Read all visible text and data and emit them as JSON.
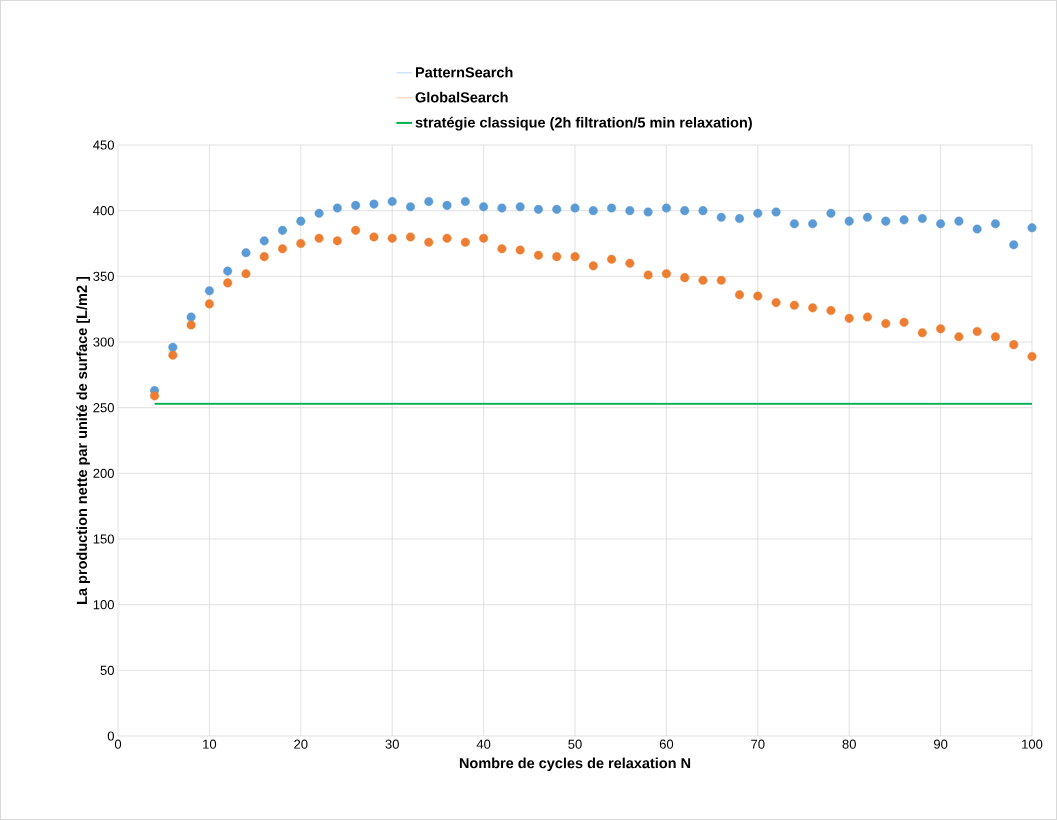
{
  "chart_data": {
    "type": "scatter",
    "xlabel": "Nombre de cycles de relaxation N",
    "ylabel": "La production nette par unité de surface [L/m2 ]",
    "x": [
      4,
      6,
      8,
      10,
      12,
      14,
      16,
      18,
      20,
      22,
      24,
      26,
      28,
      30,
      32,
      34,
      36,
      38,
      40,
      42,
      44,
      46,
      48,
      50,
      52,
      54,
      56,
      58,
      60,
      62,
      64,
      66,
      68,
      70,
      72,
      74,
      76,
      78,
      80,
      82,
      84,
      86,
      88,
      90,
      92,
      94,
      96,
      98,
      100
    ],
    "series": [
      {
        "name": "PatternSearch",
        "color": "#5b9bd5",
        "values": [
          263,
          296,
          319,
          339,
          354,
          368,
          377,
          385,
          392,
          398,
          402,
          404,
          405,
          407,
          403,
          407,
          404,
          407,
          403,
          402,
          403,
          401,
          401,
          402,
          400,
          402,
          400,
          399,
          402,
          400,
          400,
          395,
          394,
          398,
          399,
          390,
          390,
          398,
          392,
          395,
          392,
          393,
          394,
          390,
          392,
          386,
          390,
          374,
          387
        ]
      },
      {
        "name": "GlobalSearch",
        "color": "#ed7d31",
        "values": [
          259,
          290,
          313,
          329,
          345,
          352,
          365,
          371,
          375,
          379,
          377,
          385,
          380,
          379,
          380,
          376,
          379,
          376,
          379,
          371,
          370,
          366,
          365,
          365,
          358,
          363,
          360,
          351,
          352,
          349,
          347,
          347,
          336,
          335,
          330,
          328,
          326,
          324,
          318,
          319,
          314,
          315,
          307,
          310,
          304,
          308,
          304,
          298,
          289
        ]
      },
      {
        "name": "stratégie classique (2h filtration/5 min relaxation)",
        "type": "line",
        "color": "#00b050",
        "x": [
          4,
          100
        ],
        "values": [
          253,
          253
        ],
        "marker": "none",
        "line_style": "solid"
      }
    ],
    "xlim": [
      0,
      100
    ],
    "xticks": [
      0,
      10,
      20,
      30,
      40,
      50,
      60,
      70,
      80,
      90,
      100
    ],
    "ylim": [
      0,
      450
    ],
    "yticks": [
      0,
      50,
      100,
      150,
      200,
      250,
      300,
      350,
      400,
      450
    ],
    "grid": true,
    "legend": "top",
    "marker": "circle"
  }
}
